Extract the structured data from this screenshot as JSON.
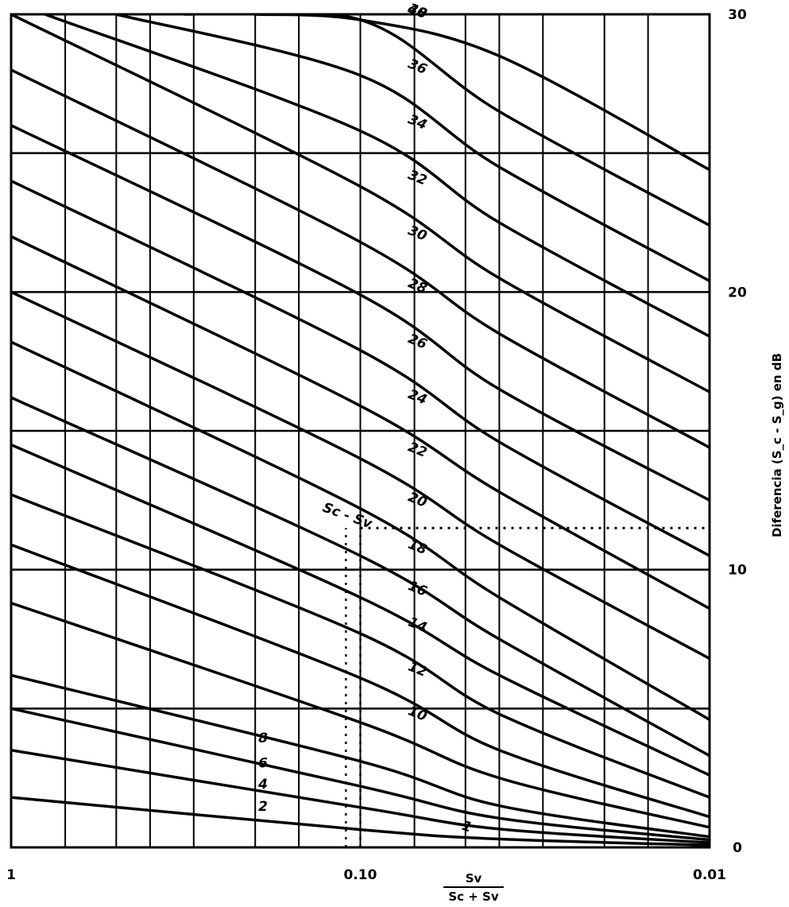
{
  "chart_data": {
    "type": "line",
    "title": "",
    "xlabel": {
      "numerator": "Sv",
      "denominator": "Sc + Sv"
    },
    "ylabel": "Diferencia (S_c - S_g) en dB",
    "x_scale": "log",
    "x_direction": "reversed",
    "xlim": [
      1,
      0.01
    ],
    "ylim": [
      0,
      30
    ],
    "x_tick_labels": [
      {
        "value": 1,
        "label": "1"
      },
      {
        "value": 0.1,
        "label": "0.10"
      },
      {
        "value": 0.01,
        "label": "0.01"
      }
    ],
    "y_tick_labels": [
      {
        "value": 0,
        "label": "0"
      },
      {
        "value": 10,
        "label": "10"
      },
      {
        "value": 20,
        "label": "20"
      },
      {
        "value": 30,
        "label": "30"
      }
    ],
    "grid": true,
    "legend": "none",
    "x_grid": [
      1,
      0.7,
      0.5,
      0.4,
      0.3,
      0.2,
      0.15,
      0.1,
      0.07,
      0.05,
      0.04,
      0.03,
      0.02,
      0.015,
      0.01
    ],
    "y_grid": [
      5,
      10,
      15,
      20,
      25
    ],
    "series": [
      {
        "name": "2",
        "x": [
          1,
          0.1,
          0.04,
          0.01
        ],
        "y": [
          1.8,
          0.64,
          0.3,
          0.08
        ]
      },
      {
        "name": "4",
        "x": [
          1,
          0.1,
          0.04,
          0.01
        ],
        "y": [
          3.5,
          1.44,
          0.66,
          0.17
        ]
      },
      {
        "name": "6",
        "x": [
          1,
          0.1,
          0.04,
          0.01
        ],
        "y": [
          5.0,
          2.2,
          1.05,
          0.27
        ]
      },
      {
        "name": "8",
        "x": [
          1,
          0.1,
          0.04,
          0.01
        ],
        "y": [
          6.2,
          3.1,
          1.5,
          0.38
        ]
      },
      {
        "name": "10",
        "x": [
          1,
          0.1,
          0.04,
          0.01
        ],
        "y": [
          8.8,
          4.5,
          2.5,
          0.72
        ]
      },
      {
        "name": "12",
        "x": [
          1,
          0.1,
          0.04,
          0.01
        ],
        "y": [
          10.9,
          6.1,
          3.5,
          1.1
        ]
      },
      {
        "name": "14",
        "x": [
          1,
          0.1,
          0.04,
          0.01
        ],
        "y": [
          12.7,
          7.7,
          4.8,
          1.8
        ]
      },
      {
        "name": "16",
        "x": [
          1,
          0.1,
          0.04,
          0.01
        ],
        "y": [
          14.5,
          9.0,
          6.2,
          2.6
        ]
      },
      {
        "name": "18",
        "x": [
          1,
          0.1,
          0.04,
          0.01
        ],
        "y": [
          16.2,
          10.5,
          7.5,
          3.3
        ]
      },
      {
        "name": "20",
        "x": [
          1,
          0.1,
          0.04,
          0.01
        ],
        "y": [
          18.2,
          12.2,
          9.0,
          4.6
        ]
      },
      {
        "name": "22",
        "x": [
          1,
          0.1,
          0.04,
          0.01
        ],
        "y": [
          20.0,
          14.0,
          10.9,
          6.8
        ]
      },
      {
        "name": "24",
        "x": [
          1,
          0.1,
          0.04,
          0.01
        ],
        "y": [
          22.0,
          15.9,
          12.8,
          8.6
        ]
      },
      {
        "name": "26",
        "x": [
          1,
          0.1,
          0.04,
          0.01
        ],
        "y": [
          24.0,
          17.9,
          14.6,
          10.5
        ]
      },
      {
        "name": "28",
        "x": [
          1,
          0.1,
          0.04,
          0.01
        ],
        "y": [
          26.0,
          19.9,
          16.5,
          12.5
        ]
      },
      {
        "name": "30",
        "x": [
          1,
          0.1,
          0.04,
          0.01
        ],
        "y": [
          28.0,
          21.8,
          18.5,
          14.4
        ]
      },
      {
        "name": "32",
        "x": [
          1,
          0.1,
          0.04,
          0.01
        ],
        "y": [
          30.0,
          23.8,
          20.5,
          16.4
        ]
      },
      {
        "name": "34",
        "x": [
          0.8,
          0.1,
          0.04,
          0.01
        ],
        "y": [
          30.0,
          25.8,
          22.5,
          18.4
        ]
      },
      {
        "name": "36",
        "x": [
          0.5,
          0.1,
          0.04,
          0.01
        ],
        "y": [
          30.0,
          27.8,
          24.5,
          20.4
        ]
      },
      {
        "name": "38",
        "x": [
          0.32,
          0.1,
          0.04,
          0.01
        ],
        "y": [
          30.0,
          29.8,
          26.5,
          22.4
        ]
      },
      {
        "name": "40",
        "x": [
          0.2,
          0.1,
          0.04,
          0.01
        ],
        "y": [
          30.0,
          29.8,
          28.5,
          24.4
        ]
      }
    ],
    "annotations": [
      {
        "type": "dotted-horizontal",
        "y": 11.5,
        "x_from": 0.1,
        "x_to": 0.01
      },
      {
        "type": "dotted-vertical-band",
        "x": [
          0.11,
          0.1
        ],
        "y_from": 0,
        "y_to": 11.5
      },
      {
        "type": "text",
        "label": "Sc - Sv",
        "x": 0.11,
        "y": 11.8
      },
      {
        "type": "text",
        "label": "1",
        "x": 0.05,
        "y": 0.6
      }
    ]
  }
}
